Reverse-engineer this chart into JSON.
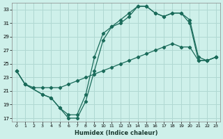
{
  "xlabel": "Humidex (Indice chaleur)",
  "xlim": [
    -0.5,
    23.5
  ],
  "ylim": [
    16.5,
    34
  ],
  "yticks": [
    17,
    19,
    21,
    23,
    25,
    27,
    29,
    31,
    33
  ],
  "xticks": [
    0,
    1,
    2,
    3,
    4,
    5,
    6,
    7,
    8,
    9,
    10,
    11,
    12,
    13,
    14,
    15,
    16,
    17,
    18,
    19,
    20,
    21,
    22,
    23
  ],
  "bg_color": "#cef0ea",
  "grid_color": "#b0d8d2",
  "line_color": "#1a6b5a",
  "line1_x": [
    0,
    1,
    3,
    4,
    5,
    6,
    7,
    8,
    9,
    10,
    11,
    12,
    13,
    14,
    15,
    16,
    17,
    18,
    19,
    20,
    21,
    22,
    23
  ],
  "line1_y": [
    24.0,
    22.0,
    20.5,
    20.0,
    18.5,
    17.0,
    17.0,
    19.5,
    24.0,
    28.5,
    30.5,
    31.0,
    32.0,
    33.5,
    33.5,
    32.5,
    32.0,
    32.5,
    32.5,
    31.0,
    25.5,
    25.5,
    26.0
  ],
  "line2_x": [
    0,
    1,
    3,
    4,
    5,
    6,
    7,
    8,
    9,
    10,
    11,
    12,
    13,
    14,
    15,
    16,
    17,
    18,
    19,
    20,
    21,
    22,
    23
  ],
  "line2_y": [
    24.0,
    22.0,
    20.5,
    20.0,
    18.5,
    17.5,
    17.5,
    20.5,
    26.0,
    29.5,
    30.5,
    31.5,
    32.5,
    33.5,
    33.5,
    32.5,
    32.0,
    32.5,
    32.5,
    31.5,
    26.0,
    25.5,
    26.0
  ],
  "line3_x": [
    0,
    1,
    2,
    3,
    4,
    5,
    6,
    7,
    8,
    9,
    10,
    11,
    12,
    13,
    14,
    15,
    16,
    17,
    18,
    19,
    20,
    21,
    22,
    23
  ],
  "line3_y": [
    24.0,
    22.0,
    21.5,
    21.5,
    21.5,
    21.5,
    22.0,
    22.5,
    23.0,
    23.5,
    24.0,
    24.5,
    25.0,
    25.5,
    26.0,
    26.5,
    27.0,
    27.5,
    28.0,
    27.5,
    27.5,
    25.5,
    25.5,
    26.0
  ]
}
